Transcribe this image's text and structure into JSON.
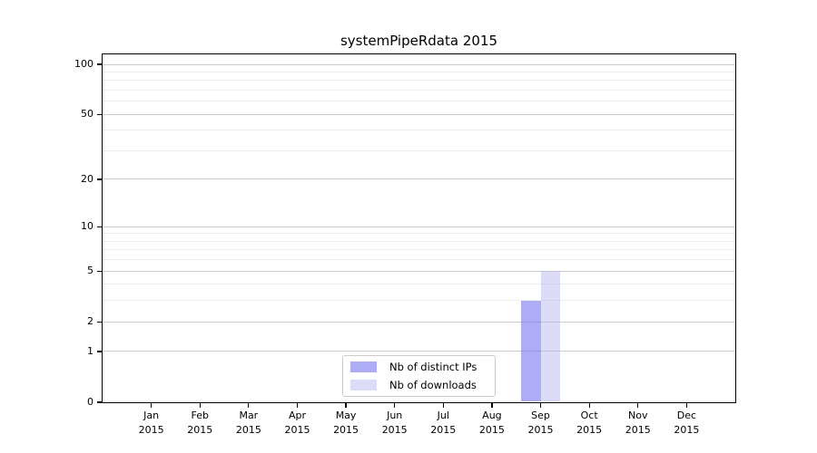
{
  "chart_data": {
    "type": "bar",
    "title": "systemPipeRdata 2015",
    "categories": [
      "Jan 2015",
      "Feb 2015",
      "Mar 2015",
      "Apr 2015",
      "May 2015",
      "Jun 2015",
      "Jul 2015",
      "Aug 2015",
      "Sep 2015",
      "Oct 2015",
      "Nov 2015",
      "Dec 2015"
    ],
    "series": [
      {
        "name": "Nb of distinct IPs",
        "fill": "rgba(122,122,240,0.62)",
        "legend_color": "#abanone",
        "values": [
          0,
          0,
          0,
          0,
          0,
          0,
          0,
          0,
          3,
          0,
          0,
          0
        ]
      },
      {
        "name": "Nb of downloads",
        "fill": "rgba(185,185,240,0.50)",
        "legend_color": "#d9d9f7",
        "values": [
          0,
          0,
          0,
          0,
          0,
          0,
          0,
          0,
          5,
          0,
          0,
          0
        ]
      }
    ],
    "xlabel": "",
    "ylabel": "",
    "yscale": "log1p",
    "ylim": [
      0,
      100
    ],
    "yticks": [
      0,
      1,
      2,
      5,
      10,
      20,
      50,
      100
    ],
    "minor_gridlines": [
      1,
      2,
      3,
      4,
      5,
      6,
      7,
      8,
      9,
      10,
      20,
      30,
      40,
      50,
      60,
      70,
      80,
      90,
      100
    ],
    "major_gridlines": [
      1,
      2,
      5,
      10,
      20,
      50,
      100
    ],
    "grid": "on",
    "legend_position": "inside-bottom-center",
    "colors": {
      "bar_distinct_ips_on_white": "#acacf4",
      "bar_downloads_on_white": "#dcdcf8",
      "minor_grid": "#ededed",
      "major_grid": "#cbcbcb",
      "axis": "#000000",
      "background": "#ffffff"
    }
  }
}
